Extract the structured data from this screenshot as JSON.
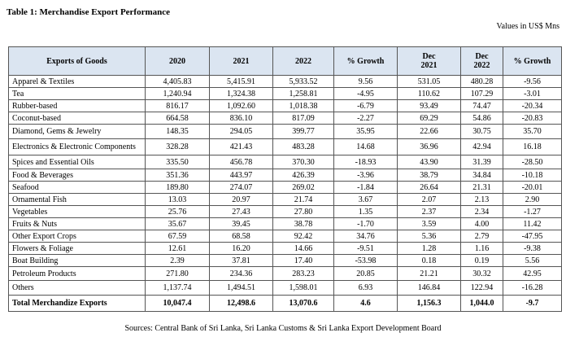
{
  "header": {
    "title": "Table 1: Merchandise Export Performance",
    "units": "Values in US$ Mns"
  },
  "table": {
    "columns": [
      "Exports of Goods",
      "2020",
      "2021",
      "2022",
      "% Growth",
      "Dec 2021",
      "Dec 2022",
      "% Growth"
    ],
    "rows": [
      [
        "Apparel & Textiles",
        "4,405.83",
        "5,415.91",
        "5,933.52",
        "9.56",
        "531.05",
        "480.28",
        "-9.56"
      ],
      [
        "Tea",
        "1,240.94",
        "1,324.38",
        "1,258.81",
        "-4.95",
        "110.62",
        "107.29",
        "-3.01"
      ],
      [
        "Rubber-based",
        "816.17",
        "1,092.60",
        "1,018.38",
        "-6.79",
        "93.49",
        "74.47",
        "-20.34"
      ],
      [
        "Coconut-based",
        "664.58",
        "836.10",
        "817.09",
        "-2.27",
        "69.29",
        "54.86",
        "-20.83"
      ],
      [
        "Diamond, Gems & Jewelry",
        "148.35",
        "294.05",
        "399.77",
        "35.95",
        "22.66",
        "30.75",
        "35.70"
      ],
      [
        "Electronics & Electronic Components",
        "328.28",
        "421.43",
        "483.28",
        "14.68",
        "36.96",
        "42.94",
        "16.18"
      ],
      [
        "Spices and Essential Oils",
        "335.50",
        "456.78",
        "370.30",
        "-18.93",
        "43.90",
        "31.39",
        "-28.50"
      ],
      [
        "Food & Beverages",
        "351.36",
        "443.97",
        "426.39",
        "-3.96",
        "38.79",
        "34.84",
        "-10.18"
      ],
      [
        "Seafood",
        "189.80",
        "274.07",
        "269.02",
        "-1.84",
        "26.64",
        "21.31",
        "-20.01"
      ],
      [
        "Ornamental Fish",
        "13.03",
        "20.97",
        "21.74",
        "3.67",
        "2.07",
        "2.13",
        "2.90"
      ],
      [
        "Vegetables",
        "25.76",
        "27.43",
        "27.80",
        "1.35",
        "2.37",
        "2.34",
        "-1.27"
      ],
      [
        "Fruits & Nuts",
        "35.67",
        "39.45",
        "38.78",
        "-1.70",
        "3.59",
        "4.00",
        "11.42"
      ],
      [
        "Other Export Crops",
        "67.59",
        "68.58",
        "92.42",
        "34.76",
        "5.36",
        "2.79",
        "-47.95"
      ],
      [
        "Flowers & Foliage",
        "12.61",
        "16.20",
        "14.66",
        "-9.51",
        "1.28",
        "1.16",
        "-9.38"
      ],
      [
        "Boat Building",
        "2.39",
        "37.81",
        "17.40",
        "-53.98",
        "0.18",
        "0.19",
        "5.56"
      ],
      [
        "Petroleum Products",
        "271.80",
        "234.36",
        "283.23",
        "20.85",
        "21.21",
        "30.32",
        "42.95"
      ],
      [
        "Others",
        "1,137.74",
        "1,494.51",
        "1,598.01",
        "6.93",
        "146.84",
        "122.94",
        "-16.28"
      ],
      [
        "Total Merchandize Exports",
        "10,047.4",
        "12,498.6",
        "13,070.6",
        "4.6",
        "1,156.3",
        "1,044.0",
        "-9.7"
      ]
    ]
  },
  "footer": {
    "source": "Sources: Central Bank of Sri Lanka, Sri Lanka Customs & Sri Lanka Export Development Board"
  }
}
